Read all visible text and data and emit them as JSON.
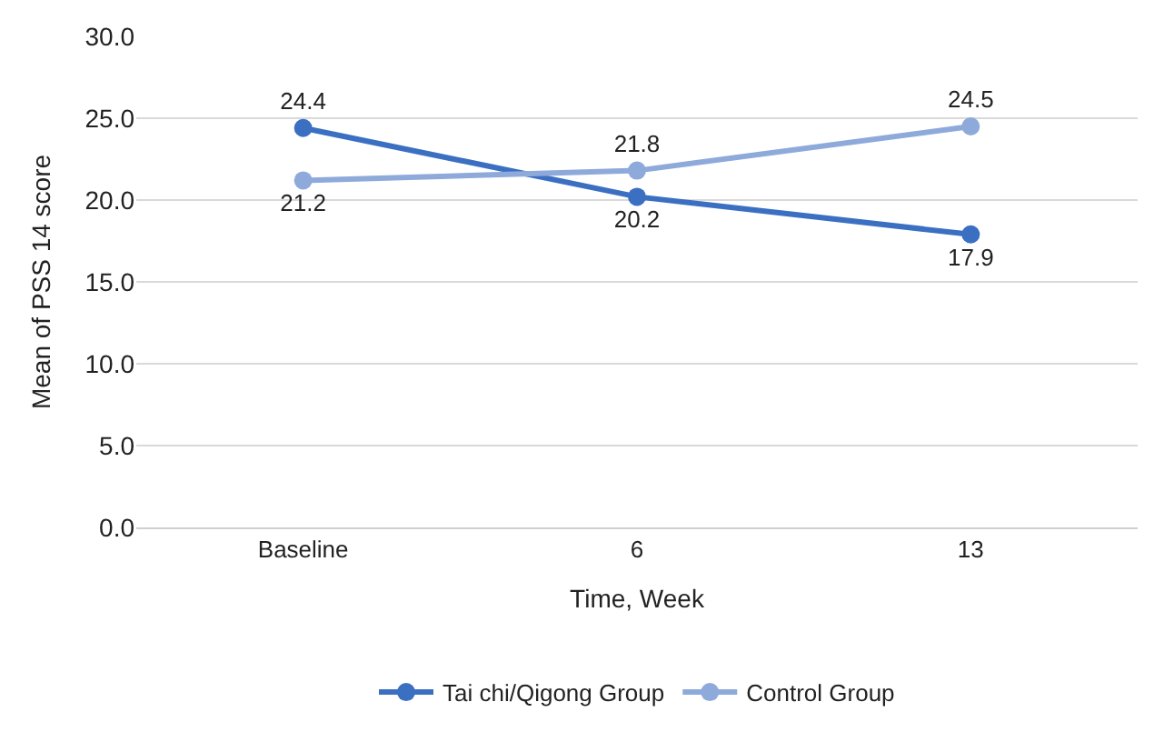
{
  "chart_data": {
    "type": "line",
    "xlabel": "Time, Week",
    "ylabel": "Mean of PSS 14 score",
    "categories": [
      "Baseline",
      "6",
      "13"
    ],
    "series": [
      {
        "name": "Tai chi/Qigong Group",
        "color": "#3b6fc2",
        "values": [
          24.4,
          20.2,
          17.9
        ]
      },
      {
        "name": "Control Group",
        "color": "#8eaadb",
        "values": [
          21.2,
          21.8,
          24.5
        ]
      }
    ],
    "ylim": [
      0,
      30
    ],
    "yticks": [
      {
        "value": 0,
        "label": "0.0"
      },
      {
        "value": 5,
        "label": "5.0"
      },
      {
        "value": 10,
        "label": "10.0"
      },
      {
        "value": 15,
        "label": "15.0"
      },
      {
        "value": 20,
        "label": "20.0"
      },
      {
        "value": 25,
        "label": "25.0"
      },
      {
        "value": 30,
        "label": "30.0"
      }
    ],
    "grid": "y",
    "legend": "bottom",
    "marker": "circle",
    "line_style": "solid",
    "data_labels": true
  }
}
